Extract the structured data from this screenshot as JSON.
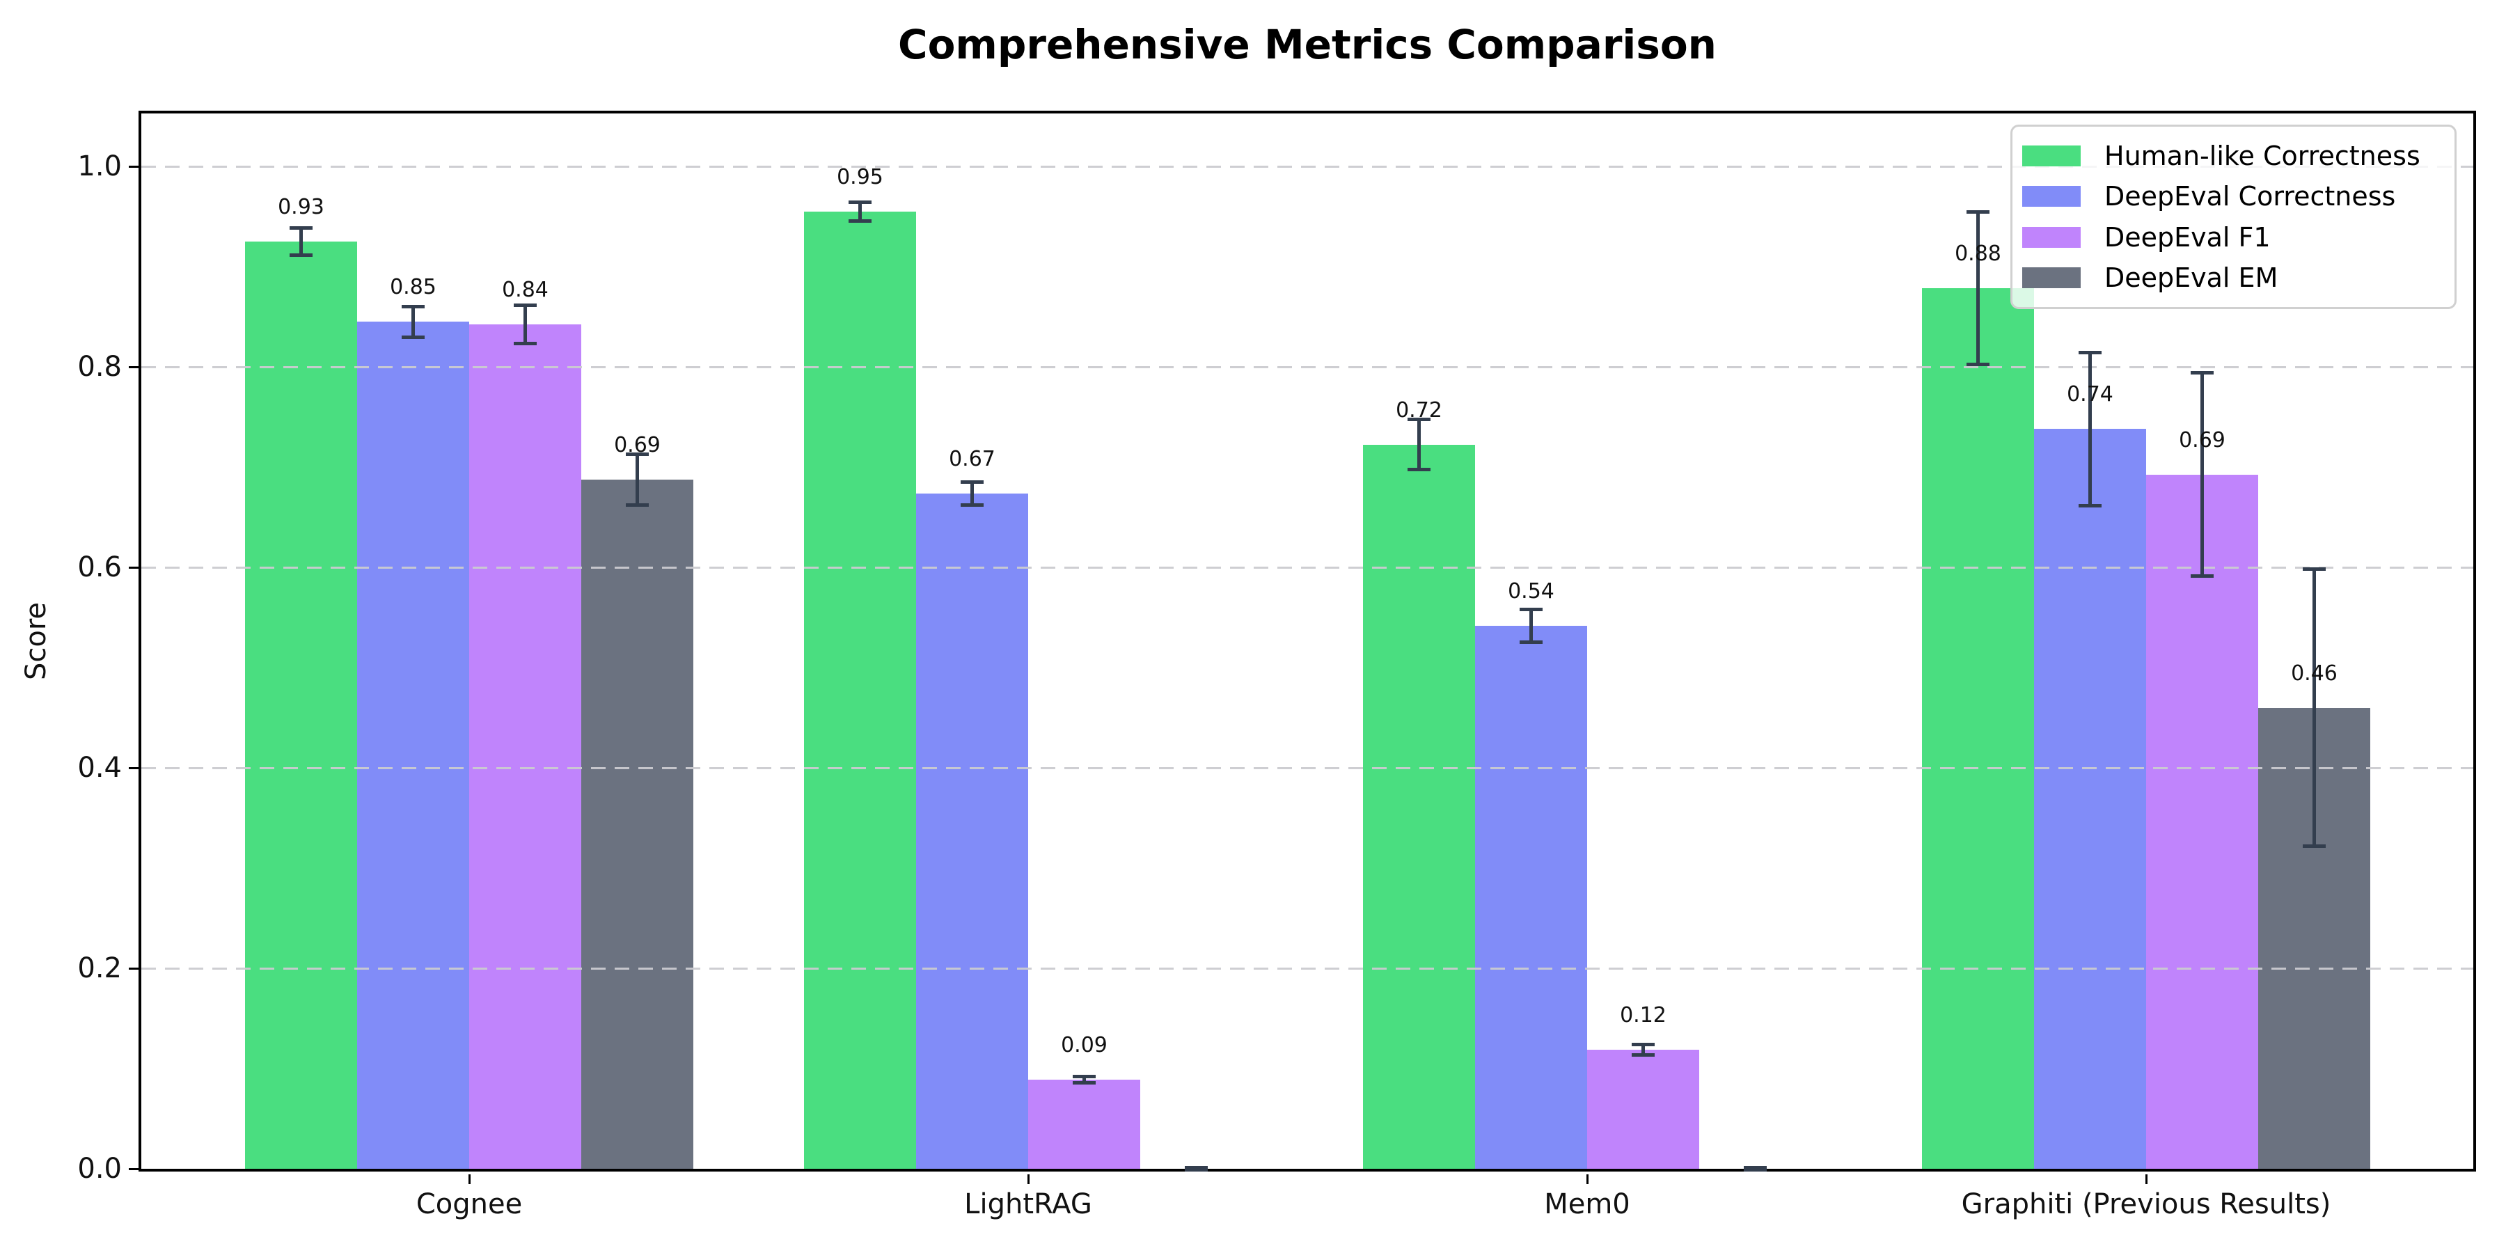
{
  "chart_data": {
    "type": "bar",
    "title": "Comprehensive Metrics Comparison",
    "xlabel": "",
    "ylabel": "Score",
    "categories": [
      "Cognee",
      "LightRAG",
      "Mem0",
      "Graphiti (Previous Results)"
    ],
    "series": [
      {
        "name": "Human-like Correctness",
        "color": "#4ade80",
        "values": [
          0.925,
          0.955,
          0.7225,
          0.8785
        ],
        "errors": [
          0.015,
          0.011,
          0.027,
          0.078
        ],
        "bar_labels": [
          "0.93",
          "0.95",
          "0.72",
          "0.88"
        ]
      },
      {
        "name": "DeepEval Correctness",
        "color": "#818cf8",
        "values": [
          0.845,
          0.6735,
          0.5415,
          0.738
        ],
        "errors": [
          0.017,
          0.013,
          0.018,
          0.078
        ],
        "bar_labels": [
          "0.85",
          "0.67",
          "0.54",
          "0.74"
        ]
      },
      {
        "name": "DeepEval F1",
        "color": "#c084fc",
        "values": [
          0.8425,
          0.089,
          0.119,
          0.6925
        ],
        "errors": [
          0.021,
          0.005,
          0.007,
          0.103
        ],
        "bar_labels": [
          "0.84",
          "0.09",
          "0.12",
          "0.69"
        ]
      },
      {
        "name": "DeepEval EM",
        "color": "#6b7280",
        "values": [
          0.6875,
          0.0,
          0.0,
          0.46
        ],
        "errors": [
          0.027,
          0.003,
          0.003,
          0.14
        ],
        "bar_labels": [
          "0.69",
          null,
          null,
          "0.46"
        ]
      }
    ],
    "ylim": [
      0.0,
      1.058
    ],
    "ytick_labels": [
      "0.0",
      "0.2",
      "0.4",
      "0.6",
      "0.8",
      "1.0"
    ],
    "grid": "horizontal dashed",
    "legend_position": "upper right",
    "error_bar_color": "#333e4e",
    "axis_color": "#000000",
    "background": "#ffffff"
  }
}
